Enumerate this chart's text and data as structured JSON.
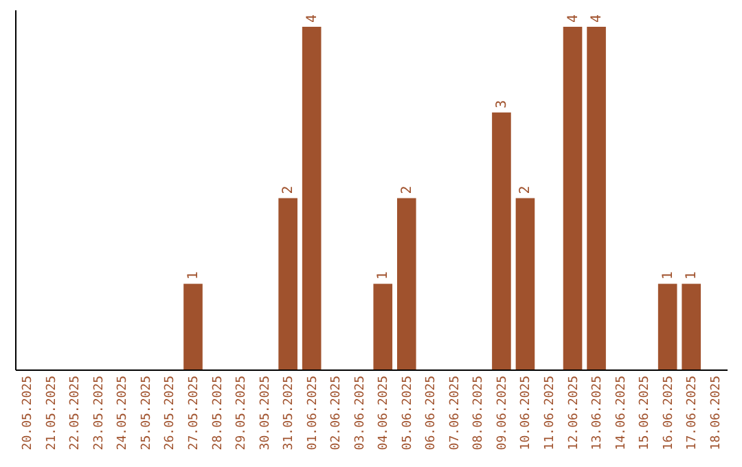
{
  "chart_data": {
    "type": "bar",
    "categories": [
      "20.05.2025",
      "21.05.2025",
      "22.05.2025",
      "23.05.2025",
      "24.05.2025",
      "25.05.2025",
      "26.05.2025",
      "27.05.2025",
      "28.05.2025",
      "29.05.2025",
      "30.05.2025",
      "31.05.2025",
      "01.06.2025",
      "02.06.2025",
      "03.06.2025",
      "04.06.2025",
      "05.06.2025",
      "06.06.2025",
      "07.06.2025",
      "08.06.2025",
      "09.06.2025",
      "10.06.2025",
      "11.06.2025",
      "12.06.2025",
      "13.06.2025",
      "14.06.2025",
      "15.06.2025",
      "16.06.2025",
      "17.06.2025",
      "18.06.2025"
    ],
    "values": [
      0,
      0,
      0,
      0,
      0,
      0,
      0,
      1,
      0,
      0,
      0,
      2,
      4,
      0,
      0,
      1,
      2,
      0,
      0,
      0,
      3,
      2,
      0,
      4,
      4,
      0,
      0,
      1,
      1,
      0
    ],
    "value_labels": [
      null,
      null,
      null,
      null,
      null,
      null,
      null,
      "1",
      null,
      null,
      null,
      "2",
      "4",
      null,
      null,
      "1",
      "2",
      null,
      null,
      null,
      "3",
      "2",
      null,
      "4",
      "4",
      null,
      null,
      "1",
      "1",
      null
    ],
    "color": "#a0522d",
    "ylim": [
      0,
      4.2
    ],
    "tick_labels": "x",
    "grid": false
  }
}
